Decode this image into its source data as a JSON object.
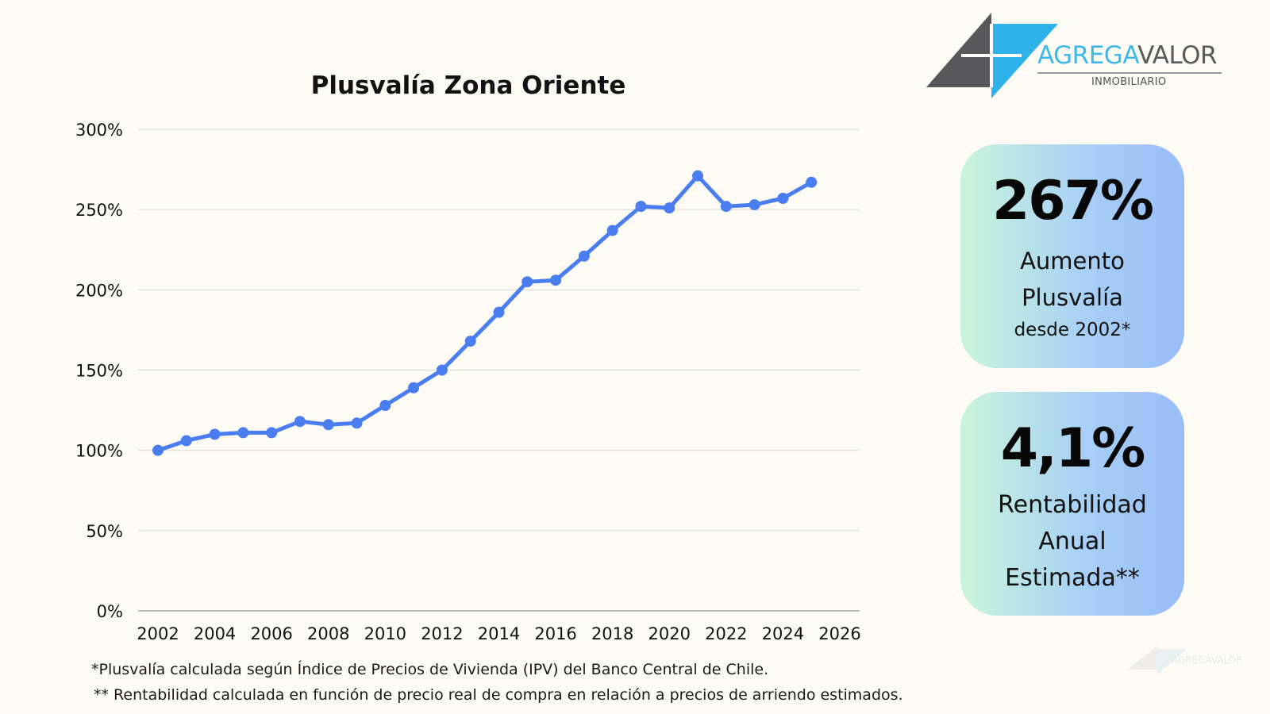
{
  "brand": {
    "name_part1": "AGREGA",
    "name_part2": "VALOR",
    "subtitle": "INMOBILIARIO",
    "watermark_text": "AGREGAVALOR"
  },
  "cards": [
    {
      "value": "267%",
      "label_line1": "Aumento",
      "label_line2": "Plusvalía",
      "label_line3": "desde 2002*"
    },
    {
      "value": "4,1%",
      "label_line1": "Rentabilidad",
      "label_line2": "Anual",
      "label_line3": "Estimada**"
    }
  ],
  "footnotes": {
    "line1": "*Plusvalía calculada según Índice de Precios de Vivienda (IPV) del Banco Central de Chile.",
    "line2": "** Rentabilidad calculada en función de precio real de compra en relación a precios de arriendo estimados."
  },
  "colors": {
    "series": "#4a7df0",
    "card_gradient_start": "#c9f5dc",
    "card_gradient_end": "#99bdf7",
    "logo_blue": "#3fb8eb",
    "logo_gray": "#5a5a5c",
    "background": "#fdfbf4"
  },
  "chart_data": {
    "type": "line",
    "title": "Plusvalía Zona Oriente",
    "xlabel": "",
    "ylabel": "",
    "x": [
      2002,
      2003,
      2004,
      2005,
      2006,
      2007,
      2008,
      2009,
      2010,
      2011,
      2012,
      2013,
      2014,
      2015,
      2016,
      2017,
      2018,
      2019,
      2020,
      2021,
      2022,
      2023,
      2024,
      2025
    ],
    "series": [
      {
        "values": [
          100,
          106,
          110,
          111,
          111,
          118,
          116,
          117,
          128,
          139,
          150,
          168,
          186,
          205,
          206,
          221,
          237,
          252,
          251,
          271,
          252,
          253,
          257,
          267
        ]
      }
    ],
    "xlim": [
      2002,
      2026
    ],
    "ylim": [
      0,
      300
    ],
    "xticks": [
      2002,
      2004,
      2006,
      2008,
      2010,
      2012,
      2014,
      2016,
      2018,
      2020,
      2022,
      2024,
      2026
    ],
    "yticks": [
      0,
      50,
      100,
      150,
      200,
      250,
      300
    ],
    "ytick_suffix": "%",
    "grid": true,
    "legend": "none"
  }
}
